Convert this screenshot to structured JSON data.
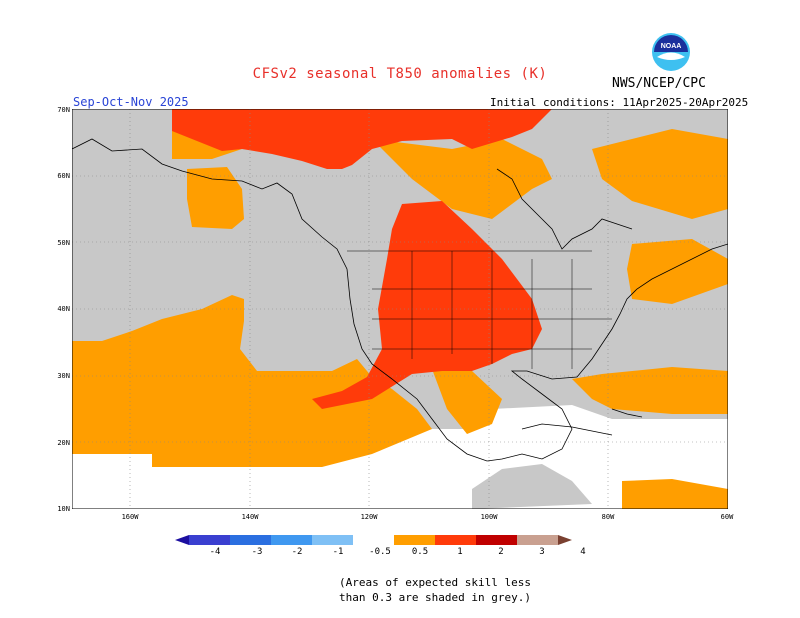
{
  "header": {
    "title": "CFSv2 seasonal T850 anomalies (K)",
    "organization": "NWS/NCEP/CPC",
    "season": "Sep-Oct-Nov 2025",
    "initial_conditions": "Initial conditions: 11Apr2025-20Apr2025",
    "logo_text": "NOAA"
  },
  "map": {
    "lat_labels": [
      "70N",
      "60N",
      "50N",
      "40N",
      "30N",
      "20N",
      "10N"
    ],
    "lon_labels": [
      "160W",
      "140W",
      "120W",
      "100W",
      "80W",
      "60W"
    ],
    "colors": {
      "grey_low_skill": "#c8c8c8",
      "anom_0_5_to_1": "#ff9e00",
      "anom_1_to_2": "#ff3b0a",
      "land_no_signal": "#ffffff"
    }
  },
  "colorbar": {
    "labels": [
      "-4",
      "-3",
      "-2",
      "-1",
      "-0.5",
      "0.5",
      "1",
      "2",
      "3",
      "4"
    ],
    "colors": [
      "#1c0fa0",
      "#3a3fd0",
      "#2b6fe0",
      "#3f98f0",
      "#7fc0f5",
      "#ffffff",
      "#ff9e00",
      "#ff3b0a",
      "#c00000",
      "#c9a090",
      "#7a4030"
    ]
  },
  "footnote": {
    "line1": "(Areas of expected skill less",
    "line2": "than 0.3 are shaded in grey.)"
  }
}
